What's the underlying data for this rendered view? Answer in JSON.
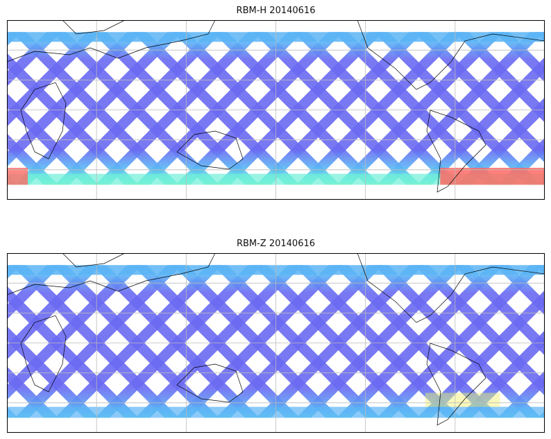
{
  "panels": [
    {
      "title": "RBM-H 20140616",
      "variable": "RBM-H",
      "date": "20140616",
      "warm_south": true
    },
    {
      "title": "RBM-Z 20140616",
      "variable": "RBM-Z",
      "date": "20140616",
      "warm_south": false
    }
  ],
  "map": {
    "projection": "PlateCarree",
    "lon_range": [
      -180,
      180
    ],
    "lat_range": [
      -90,
      90
    ],
    "gridlines": true,
    "grid_lon_step": 60,
    "grid_lat_step": 30
  },
  "colors": {
    "swath_low": "#6a6af2",
    "swath_mid": "#5ab4f5",
    "swath_cyan": "#6ef0d8",
    "swath_yellow": "#f2f06a",
    "swath_high": "#ff6a64",
    "grid": "#bbbbbb",
    "coast": "#000000"
  }
}
